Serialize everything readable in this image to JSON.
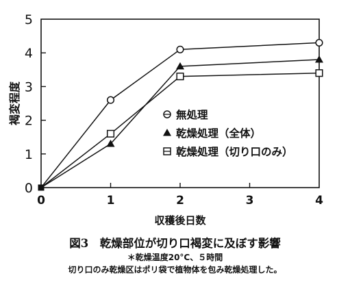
{
  "chart_data": {
    "type": "line",
    "title": "",
    "xlabel": "収穫後日数",
    "ylabel": "褐変程度",
    "xlim": [
      0,
      4
    ],
    "ylim": [
      0,
      5
    ],
    "x_ticks": [
      "0",
      "1",
      "2",
      "3",
      "4"
    ],
    "y_ticks": [
      "0",
      "1",
      "2",
      "3",
      "4",
      "5"
    ],
    "grid": false,
    "legend_position": "inside-right",
    "series": [
      {
        "name": "無処理",
        "marker": "circle-open",
        "points": [
          [
            0,
            0
          ],
          [
            1,
            2.6
          ],
          [
            2,
            4.1
          ],
          [
            4,
            4.3
          ]
        ]
      },
      {
        "name": "乾燥処理（全体）",
        "marker": "triangle-filled",
        "points": [
          [
            0,
            0
          ],
          [
            1,
            1.3
          ],
          [
            2,
            3.6
          ],
          [
            4,
            3.8
          ]
        ]
      },
      {
        "name": "乾燥処理（切り口のみ）",
        "marker": "square-open",
        "points": [
          [
            0,
            0
          ],
          [
            1,
            1.6
          ],
          [
            2,
            3.3
          ],
          [
            4,
            3.4
          ]
        ]
      }
    ]
  },
  "caption": {
    "title": "図3　乾燥部位が切り口褐変に及ぼす影響",
    "subtitle": "＊乾燥温度20°C、５時間",
    "note": "切り口のみ乾燥区はポリ袋で植物体を包み乾燥処理した。"
  }
}
